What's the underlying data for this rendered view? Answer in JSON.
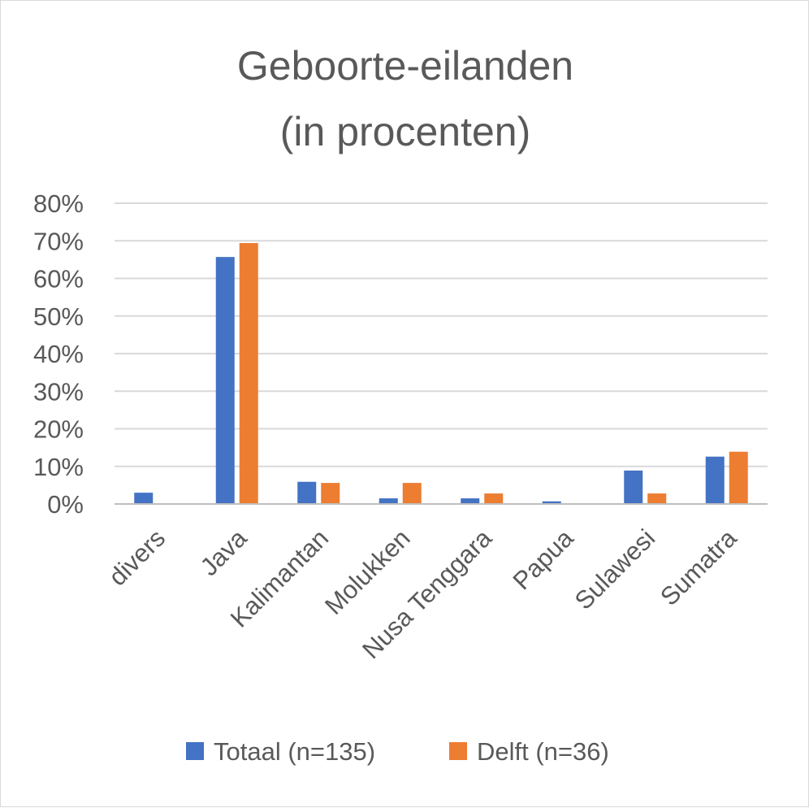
{
  "chart_data": {
    "type": "bar",
    "title": [
      "Geboorte-eilanden",
      "(in procenten)"
    ],
    "categories": [
      "divers",
      "Java",
      "Kalimantan",
      "Molukken",
      "Nusa Tenggara",
      "Papua",
      "Sulawesi",
      "Sumatra"
    ],
    "series": [
      {
        "name": "Totaal (n=135)",
        "color": "#4472c4",
        "values": [
          3.0,
          65.7,
          5.9,
          1.5,
          1.5,
          0.7,
          8.9,
          12.6
        ]
      },
      {
        "name": "Delft (n=36)",
        "color": "#ed7d31",
        "values": [
          0.0,
          69.4,
          5.6,
          5.6,
          2.8,
          0.0,
          2.8,
          13.9
        ]
      }
    ],
    "yticks": [
      "0%",
      "10%",
      "20%",
      "30%",
      "40%",
      "50%",
      "60%",
      "70%",
      "80%"
    ],
    "ylim": [
      0,
      80
    ],
    "grid": true,
    "legend": "bottom"
  }
}
